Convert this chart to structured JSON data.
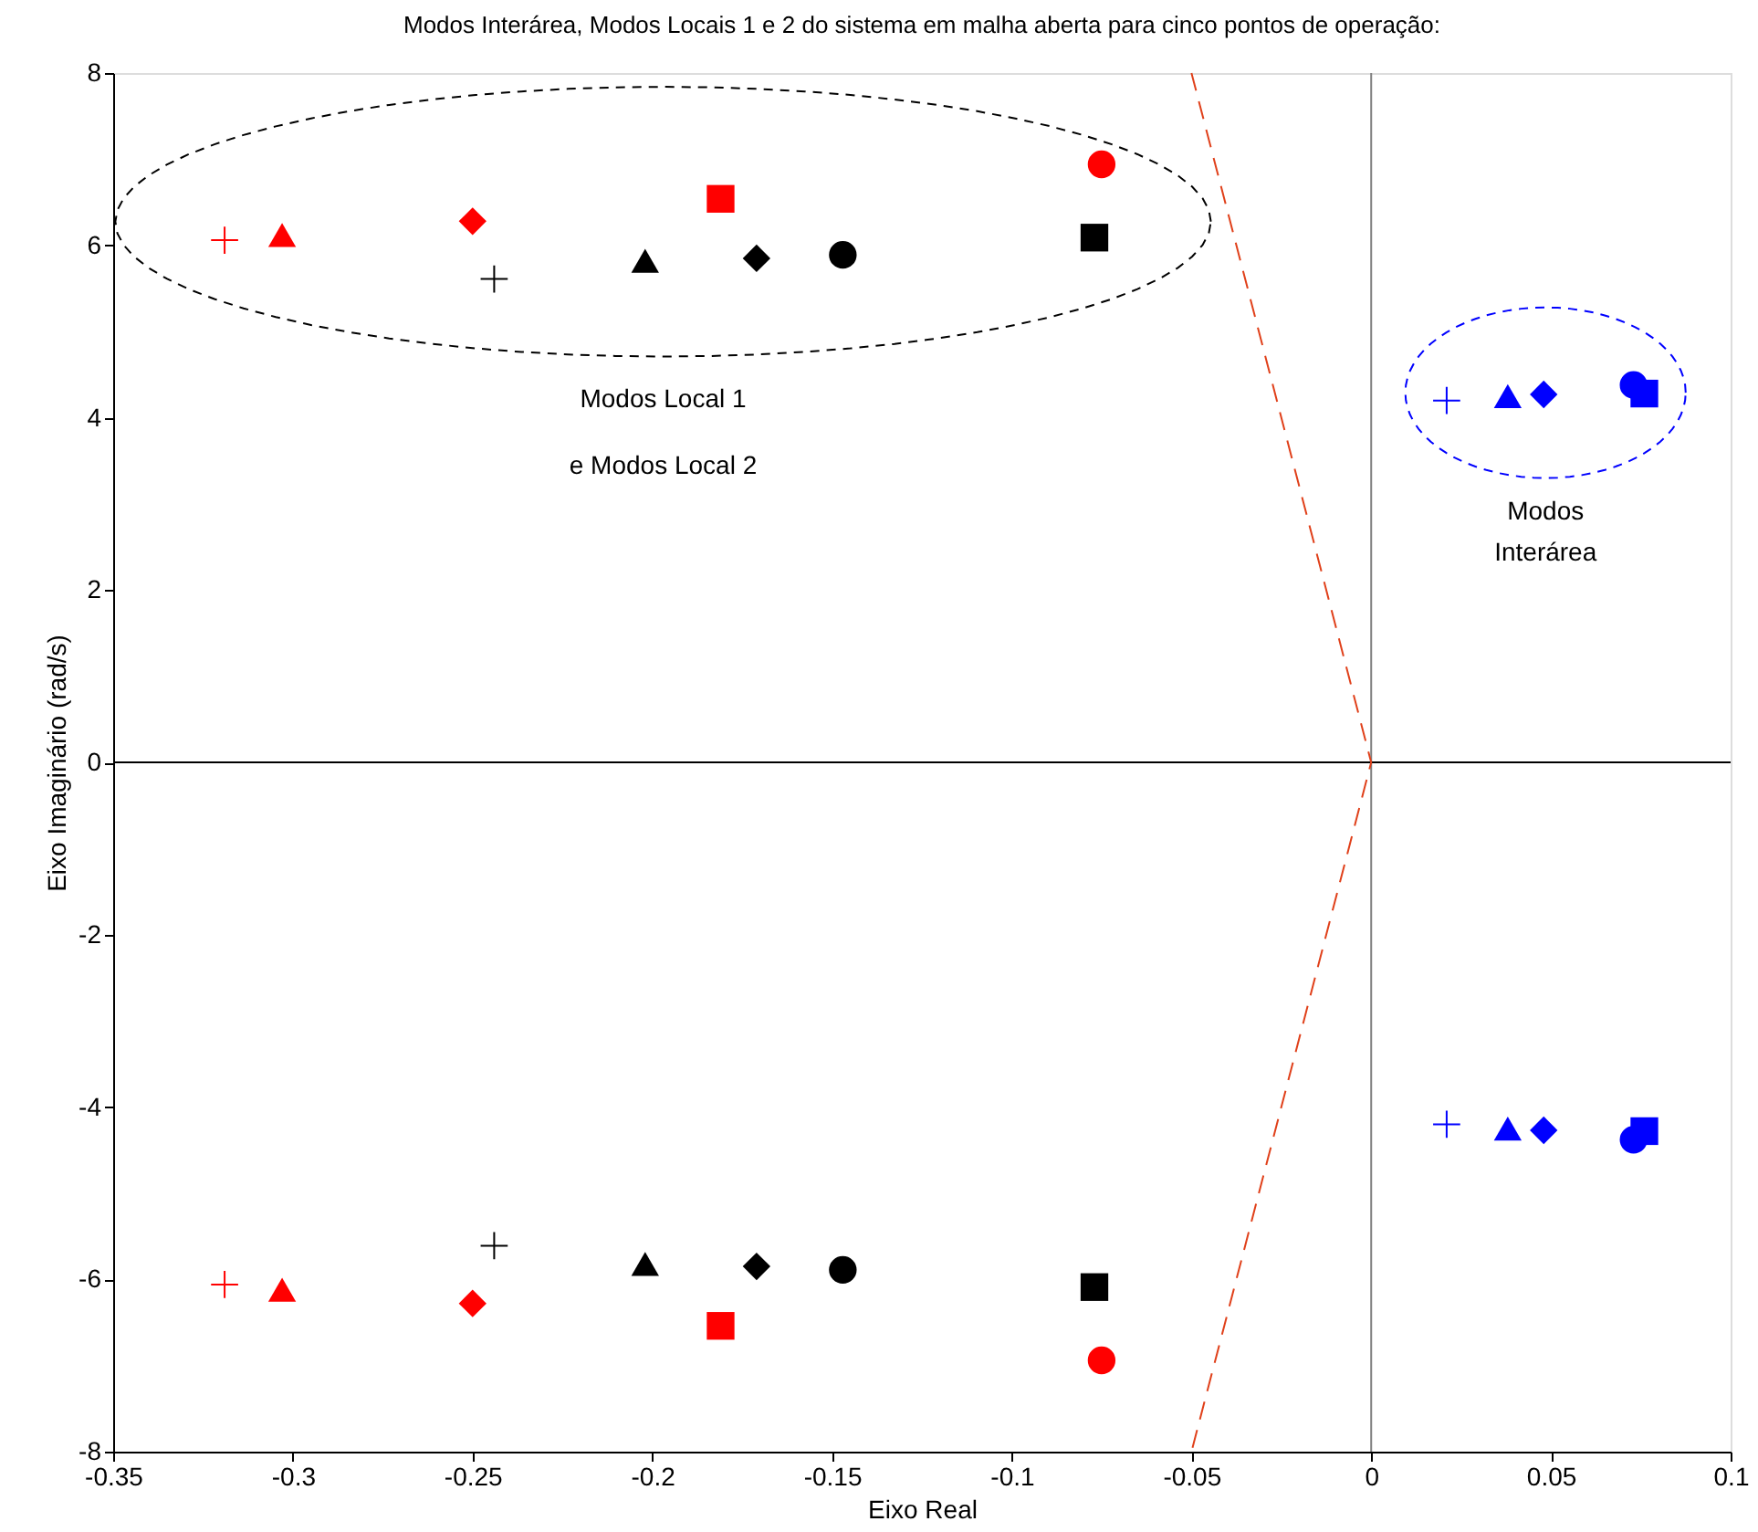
{
  "chart_data": {
    "type": "scatter",
    "title": "Modos Interárea,  Modos Locais 1 e 2  do sistema em malha aberta para cinco pontos de operação:",
    "xlabel": "Eixo Real",
    "ylabel": "Eixo Imaginário (rad/s)",
    "xlim": [
      -0.35,
      0.1
    ],
    "ylim": [
      -8,
      8
    ],
    "xticks": [
      -0.35,
      -0.3,
      -0.25,
      -0.2,
      -0.15,
      -0.1,
      -0.05,
      0,
      0.05,
      0.1
    ],
    "yticks": [
      -8,
      -6,
      -4,
      -2,
      0,
      2,
      4,
      6,
      8
    ],
    "grid": false,
    "series": [
      {
        "color": "#ff0000",
        "marker": "cross",
        "x": [
          -0.319,
          -0.319
        ],
        "values": [
          6.06,
          -6.06
        ]
      },
      {
        "color": "#ff0000",
        "marker": "triangle",
        "x": [
          -0.303,
          -0.303
        ],
        "values": [
          6.12,
          -6.12
        ]
      },
      {
        "color": "#ff0000",
        "marker": "diamond",
        "x": [
          -0.25,
          -0.25
        ],
        "values": [
          6.28,
          -6.28
        ]
      },
      {
        "color": "#ff0000",
        "marker": "square",
        "x": [
          -0.181,
          -0.181
        ],
        "values": [
          6.54,
          -6.54
        ]
      },
      {
        "color": "#ff0000",
        "marker": "circle",
        "x": [
          -0.075,
          -0.075
        ],
        "values": [
          6.94,
          -6.94
        ]
      },
      {
        "color": "#000000",
        "marker": "cross",
        "x": [
          -0.244,
          -0.244
        ],
        "values": [
          5.61,
          -5.61
        ]
      },
      {
        "color": "#000000",
        "marker": "triangle",
        "x": [
          -0.202,
          -0.202
        ],
        "values": [
          5.82,
          -5.82
        ]
      },
      {
        "color": "#000000",
        "marker": "diamond",
        "x": [
          -0.171,
          -0.171
        ],
        "values": [
          5.85,
          -5.85
        ]
      },
      {
        "color": "#000000",
        "marker": "circle",
        "x": [
          -0.147,
          -0.147
        ],
        "values": [
          5.89,
          -5.89
        ]
      },
      {
        "color": "#000000",
        "marker": "square",
        "x": [
          -0.077,
          -0.077
        ],
        "values": [
          6.09,
          -6.09
        ]
      },
      {
        "color": "#0000ff",
        "marker": "cross",
        "x": [
          0.021,
          0.021
        ],
        "values": [
          4.2,
          -4.2
        ]
      },
      {
        "color": "#0000ff",
        "marker": "triangle",
        "x": [
          0.038,
          0.038
        ],
        "values": [
          4.25,
          -4.25
        ]
      },
      {
        "color": "#0000ff",
        "marker": "diamond",
        "x": [
          0.048,
          0.048
        ],
        "values": [
          4.27,
          -4.27
        ]
      },
      {
        "color": "#0000ff",
        "marker": "circle",
        "x": [
          0.073,
          0.073
        ],
        "values": [
          4.38,
          -4.38
        ]
      },
      {
        "color": "#0000ff",
        "marker": "square",
        "x": [
          0.076,
          0.076
        ],
        "values": [
          4.28,
          -4.28
        ]
      },
      {
        "type": "line",
        "color": "#e0401a",
        "line_style": "dashed",
        "marker": "none",
        "x": [
          -0.05,
          0,
          -0.05
        ],
        "values": [
          8,
          0,
          -8
        ]
      }
    ],
    "ref_lines": [
      {
        "axis": "x",
        "value": 0,
        "color": "#808080"
      },
      {
        "axis": "y",
        "value": 0,
        "color": "#000000"
      }
    ],
    "annotations": [
      "Modos Local 1",
      "e Modos Local 2",
      "Modos",
      "Interárea"
    ]
  }
}
